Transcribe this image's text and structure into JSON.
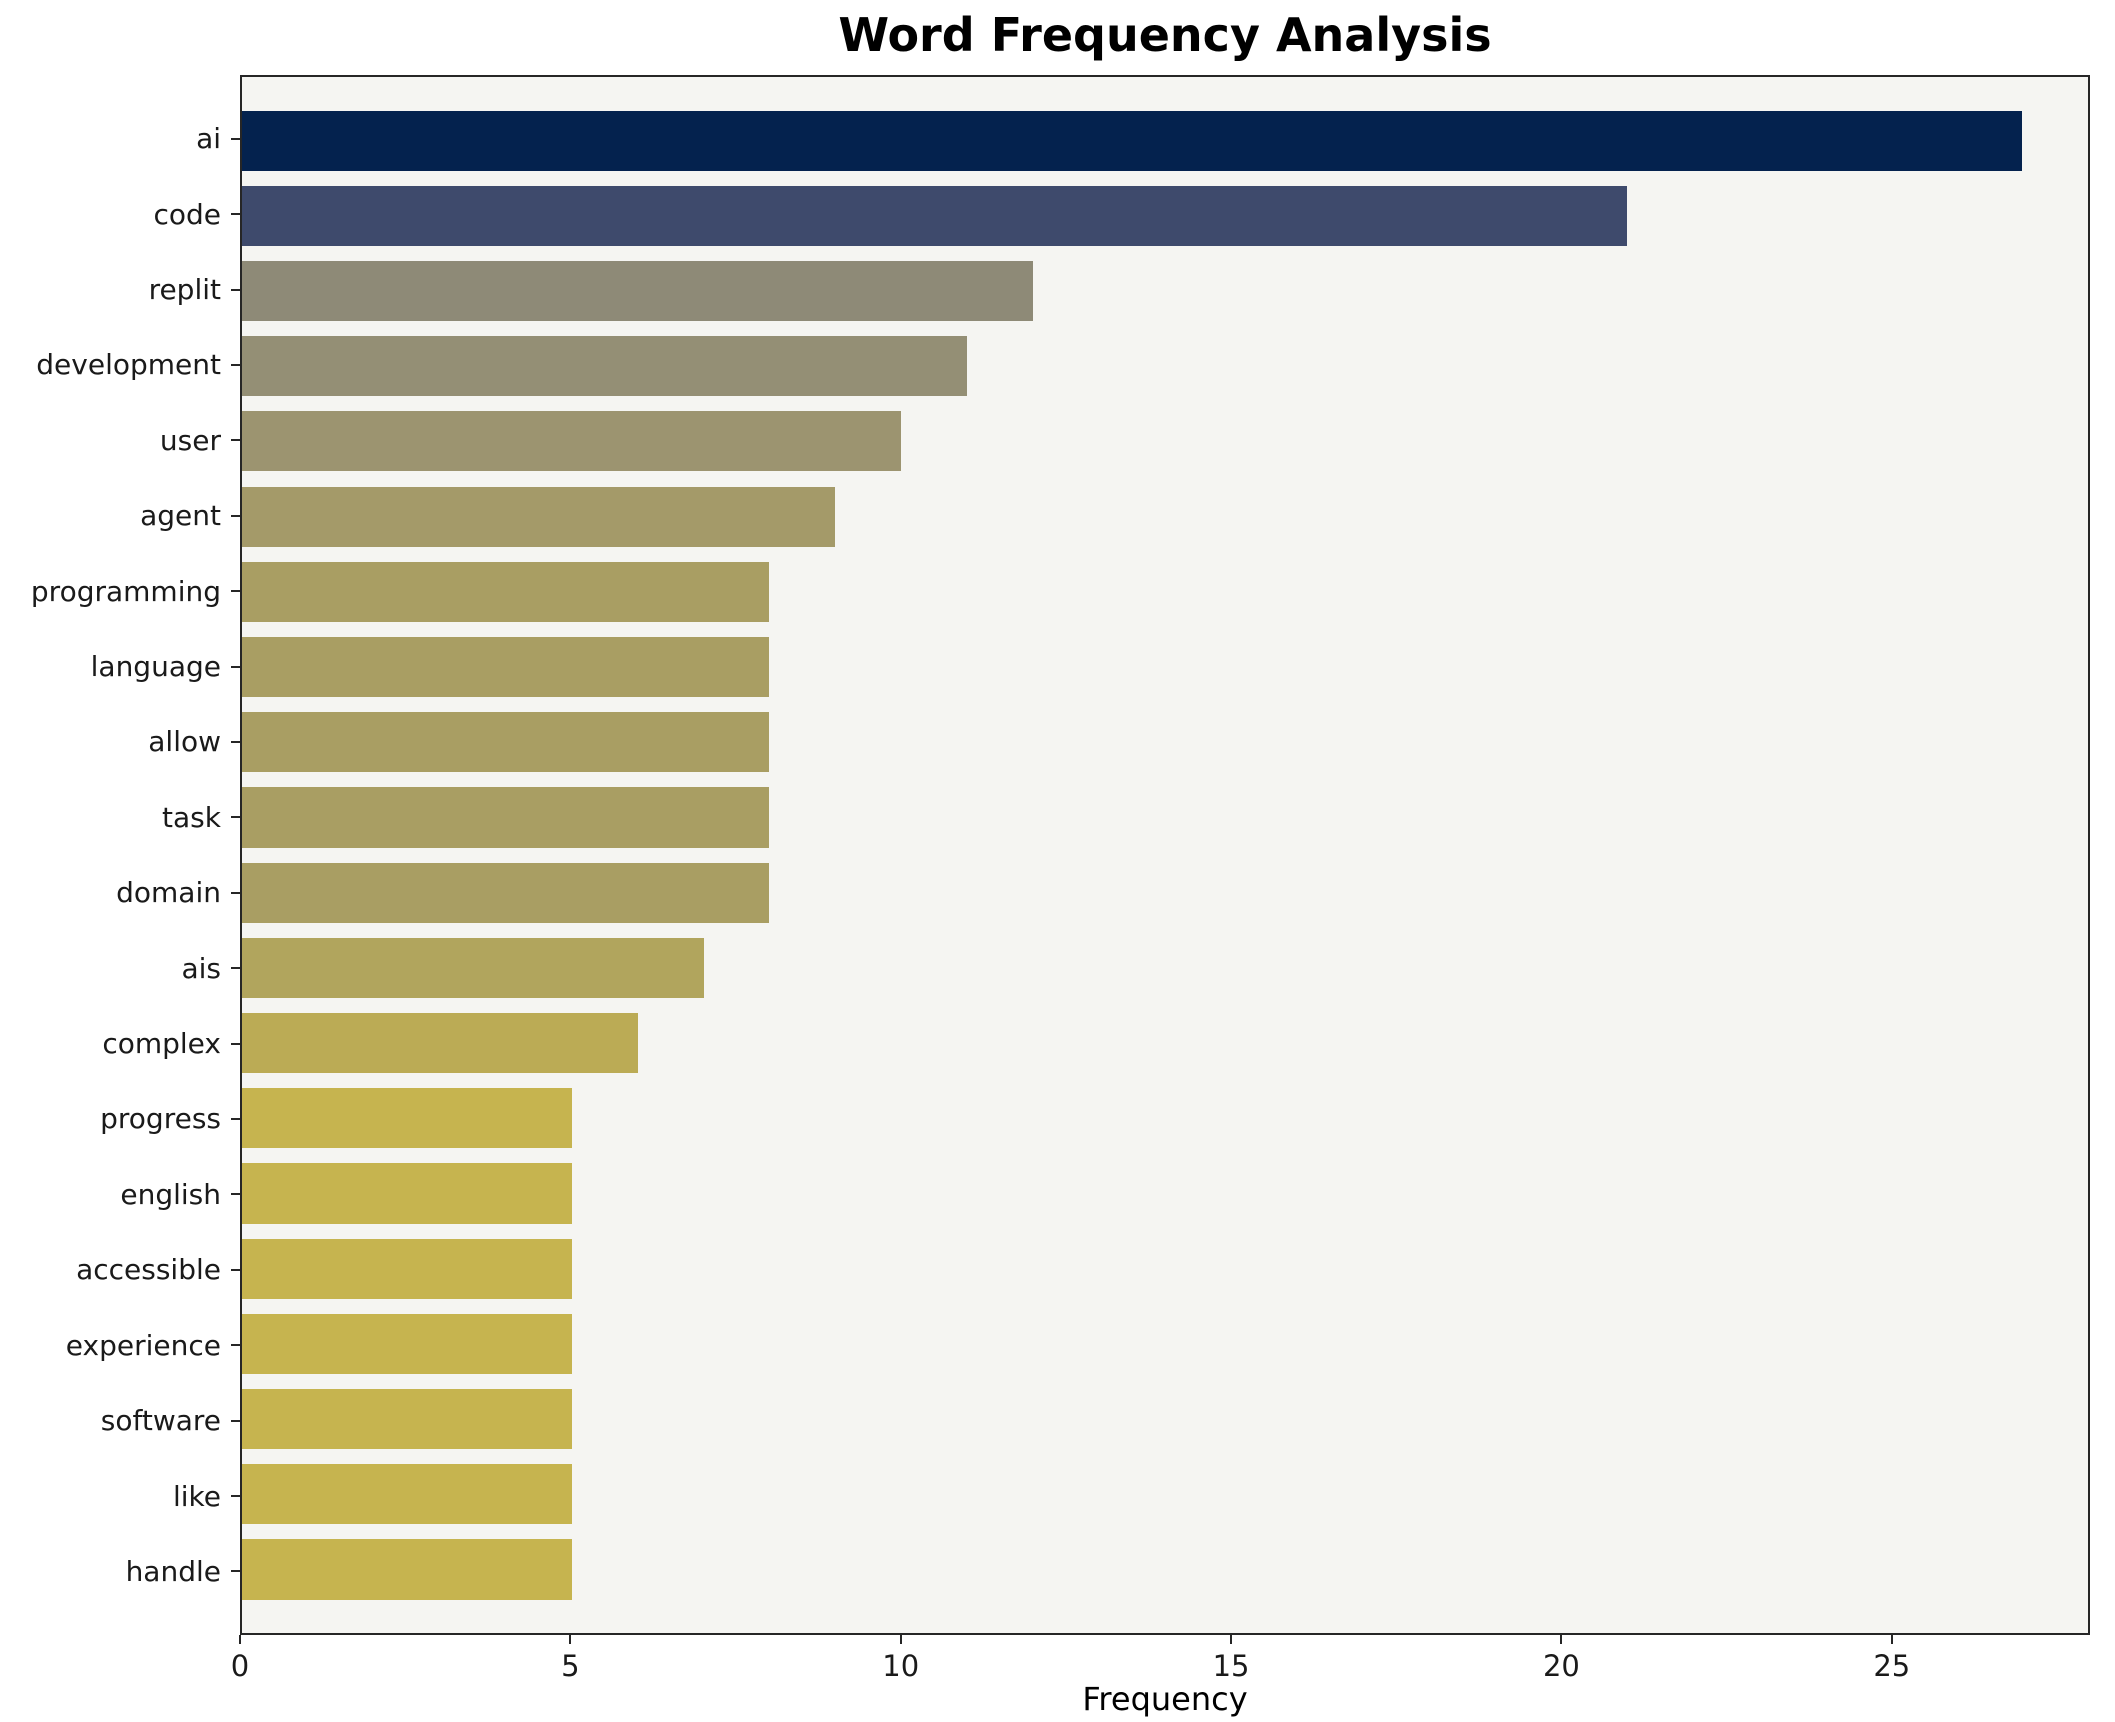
{
  "chart_data": {
    "type": "bar",
    "orientation": "horizontal",
    "title": "Word Frequency Analysis",
    "xlabel": "Frequency",
    "ylabel": "",
    "xlim": [
      0,
      28
    ],
    "xticks": [
      0,
      5,
      10,
      15,
      20,
      25
    ],
    "grid": false,
    "plot_background": "#f5f5f2",
    "categories": [
      "ai",
      "code",
      "replit",
      "development",
      "user",
      "agent",
      "programming",
      "language",
      "allow",
      "task",
      "domain",
      "ais",
      "complex",
      "progress",
      "english",
      "accessible",
      "experience",
      "software",
      "like",
      "handle"
    ],
    "values": [
      27,
      21,
      12,
      11,
      10,
      9,
      8,
      8,
      8,
      8,
      8,
      7,
      6,
      5,
      5,
      5,
      5,
      5,
      5,
      5
    ],
    "bar_colors": [
      "#04224e",
      "#3e4a6c",
      "#8e8a77",
      "#948f75",
      "#9c9470",
      "#a49a69",
      "#a99e63",
      "#a99e63",
      "#a99e63",
      "#a99e63",
      "#a99e63",
      "#b1a55d",
      "#bbab55",
      "#c6b44f",
      "#c6b44f",
      "#c6b44f",
      "#c6b44f",
      "#c6b44f",
      "#c6b44f",
      "#c6b44f"
    ]
  }
}
